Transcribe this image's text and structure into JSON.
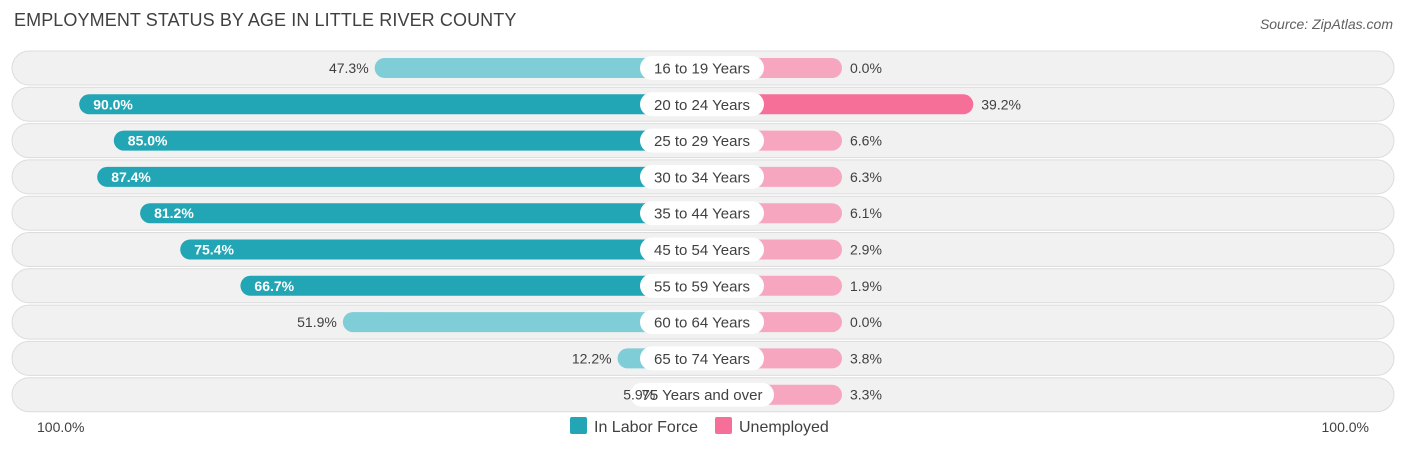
{
  "title": "EMPLOYMENT STATUS BY AGE IN LITTLE RIVER COUNTY",
  "source": "Source: ZipAtlas.com",
  "colors": {
    "labor_dark": "#22a5b4",
    "labor_light": "#7fcdd6",
    "unemp_dark": "#f56f98",
    "unemp_light": "#f7a6c0",
    "row_bg": "#f1f1f1",
    "row_border": "#dcdcdc"
  },
  "chart_data": {
    "type": "bar",
    "orientation": "horizontal-diverging",
    "title": "EMPLOYMENT STATUS BY AGE IN LITTLE RIVER COUNTY",
    "categories": [
      "16 to 19 Years",
      "20 to 24 Years",
      "25 to 29 Years",
      "30 to 34 Years",
      "35 to 44 Years",
      "45 to 54 Years",
      "55 to 59 Years",
      "60 to 64 Years",
      "65 to 74 Years",
      "75 Years and over"
    ],
    "series": [
      {
        "name": "In Labor Force",
        "side": "left",
        "values": [
          47.3,
          90.0,
          85.0,
          87.4,
          81.2,
          75.4,
          66.7,
          51.9,
          12.2,
          5.9
        ],
        "labels": [
          "47.3%",
          "90.0%",
          "85.0%",
          "87.4%",
          "81.2%",
          "75.4%",
          "66.7%",
          "51.9%",
          "12.2%",
          "5.9%"
        ]
      },
      {
        "name": "Unemployed",
        "side": "right",
        "values": [
          0.0,
          39.2,
          6.6,
          6.3,
          6.1,
          2.9,
          1.9,
          0.0,
          3.8,
          3.3
        ],
        "labels": [
          "0.0%",
          "39.2%",
          "6.6%",
          "6.3%",
          "6.1%",
          "2.9%",
          "1.9%",
          "0.0%",
          "3.8%",
          "3.3%"
        ]
      }
    ],
    "axis": {
      "left_label": "100.0%",
      "right_label": "100.0%",
      "range": [
        0,
        100
      ]
    },
    "legend": {
      "position": "bottom-center",
      "entries": [
        "In Labor Force",
        "Unemployed"
      ]
    }
  }
}
